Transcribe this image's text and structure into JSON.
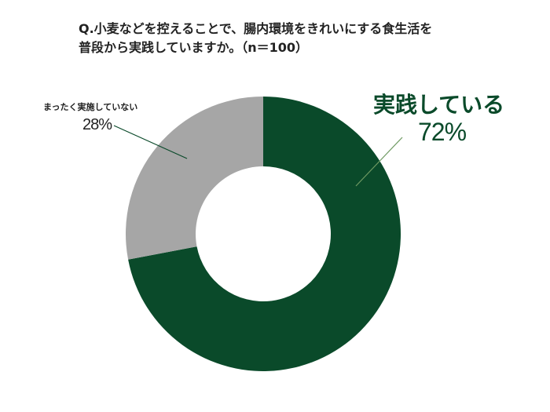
{
  "chart_data": {
    "type": "pie",
    "title_lines": [
      "Q.小麦などを控えることで、腸内環境をきれいにする食生活を",
      "普段から実践していますか。（n＝100）"
    ],
    "donut": true,
    "categories": [
      "実践している",
      "まったく実施していない"
    ],
    "values": [
      72,
      28
    ],
    "labels": [
      "72%",
      "28%"
    ],
    "colors": [
      "#0a4a2a",
      "#a6a6a6"
    ],
    "legend": "none"
  }
}
